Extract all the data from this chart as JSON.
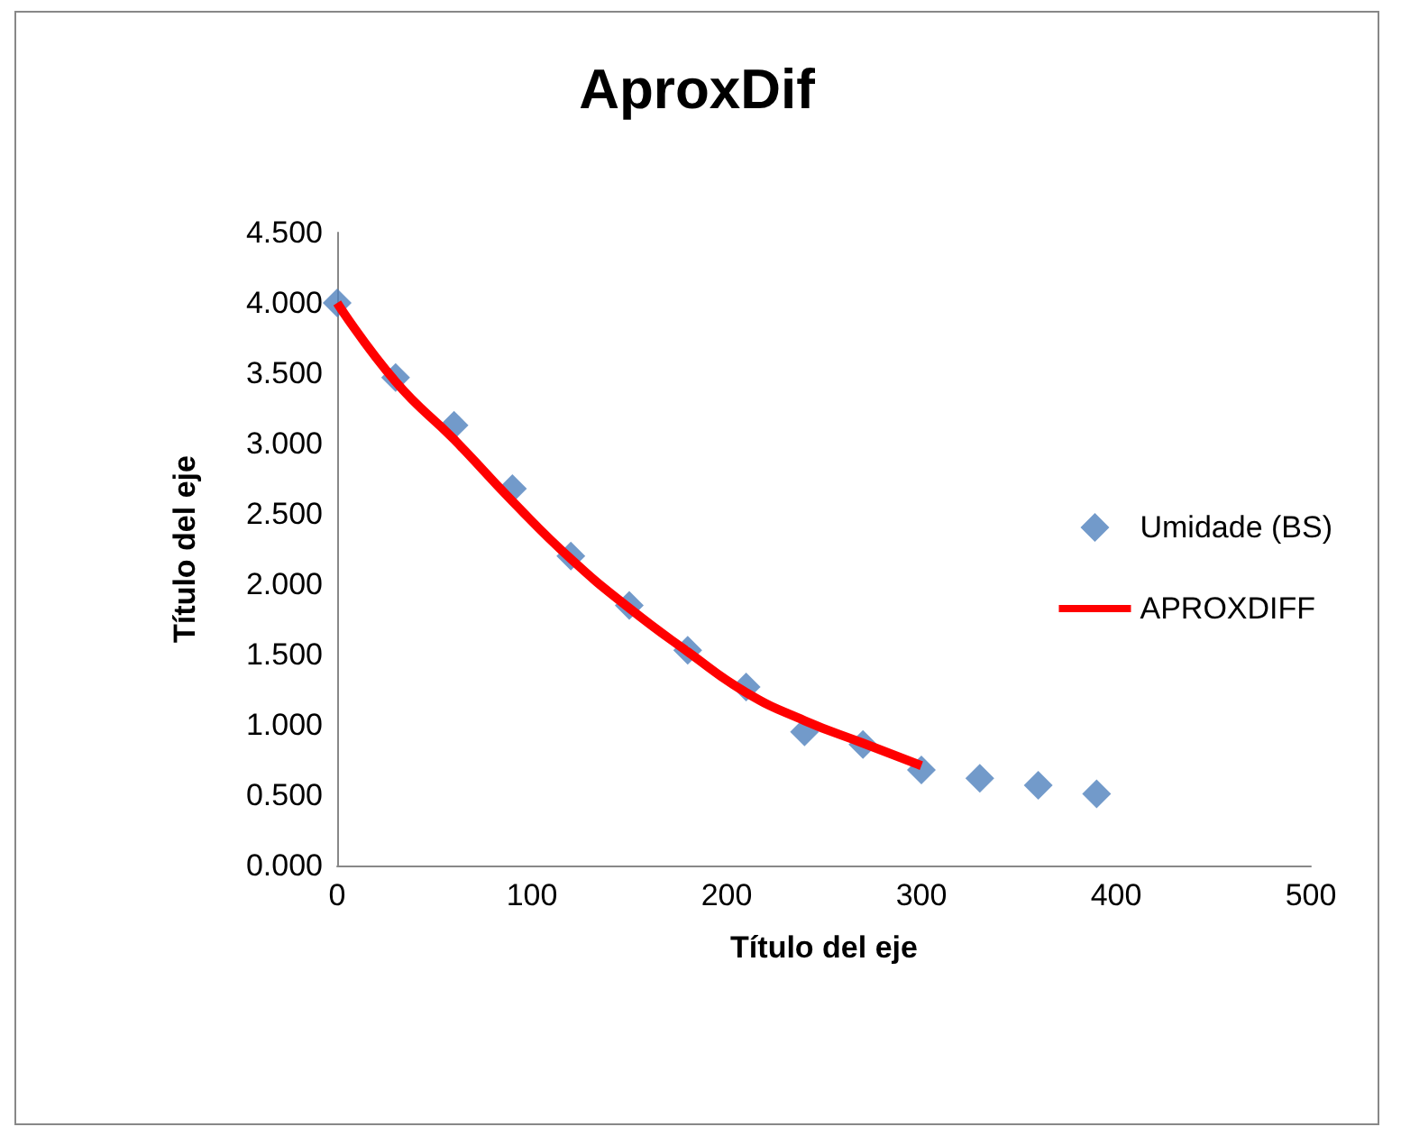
{
  "chart_data": {
    "type": "scatter",
    "title": "AproxDif",
    "xlabel": "Título del eje",
    "ylabel": "Título del eje",
    "xlim": [
      0,
      500
    ],
    "xticks": [
      0,
      100,
      200,
      300,
      400,
      500
    ],
    "ylim": [
      0,
      4.5
    ],
    "yticks": [
      {
        "value": 0,
        "label": "0.000"
      },
      {
        "value": 0.5,
        "label": "0.500"
      },
      {
        "value": 1,
        "label": "1.000"
      },
      {
        "value": 1.5,
        "label": "1.500"
      },
      {
        "value": 2,
        "label": "2.000"
      },
      {
        "value": 2.5,
        "label": "2.500"
      },
      {
        "value": 3,
        "label": "3.000"
      },
      {
        "value": 3.5,
        "label": "3.500"
      },
      {
        "value": 4,
        "label": "4.000"
      },
      {
        "value": 4.5,
        "label": "4.500"
      }
    ],
    "grid": false,
    "legend": "right",
    "series": [
      {
        "name": "Umidade (BS)",
        "marker": "diamond",
        "color": "#4f81bd",
        "x": [
          0,
          30,
          60,
          90,
          120,
          150,
          180,
          210,
          240,
          270,
          300,
          330,
          360,
          390
        ],
        "values": [
          4.0,
          3.47,
          3.13,
          2.68,
          2.2,
          1.85,
          1.53,
          1.27,
          0.95,
          0.86,
          0.68,
          0.62,
          0.57,
          0.51
        ]
      },
      {
        "name": "APROXDIFF",
        "type": "line",
        "marker": "none",
        "color": "#ff0000",
        "x": [
          0,
          30,
          60,
          90,
          120,
          150,
          180,
          210,
          240,
          270,
          300
        ],
        "values": [
          4.0,
          3.44,
          3.03,
          2.59,
          2.18,
          1.83,
          1.52,
          1.23,
          1.03,
          0.87,
          0.71
        ]
      }
    ]
  }
}
